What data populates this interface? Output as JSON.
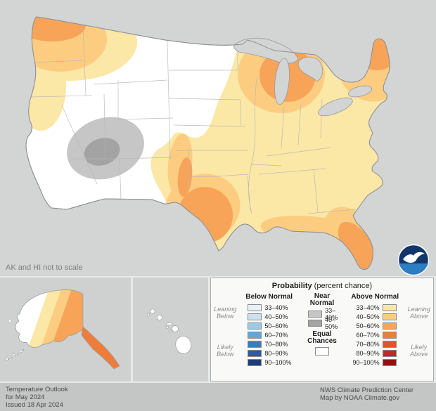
{
  "note": "AK and HI not to scale",
  "legend": {
    "title_bold": "Probability",
    "title_rest": " (percent chance)",
    "below": {
      "header": "Below Normal",
      "rows": [
        {
          "range": "33–40%",
          "color": "#e8f2fa"
        },
        {
          "range": "40–50%",
          "color": "#c9e1f1"
        },
        {
          "range": "50–60%",
          "color": "#9bcae4"
        },
        {
          "range": "60–70%",
          "color": "#66a6d4"
        },
        {
          "range": "70–80%",
          "color": "#3c7db9"
        },
        {
          "range": "80–90%",
          "color": "#2a5ba4"
        },
        {
          "range": "90–100%",
          "color": "#1c3e78"
        }
      ]
    },
    "near": {
      "header": "Near Normal",
      "rows": [
        {
          "range": "33–40%",
          "color": "#c6c6c6"
        },
        {
          "range": "40–50%",
          "color": "#a3a3a3"
        }
      ],
      "equal_label": "Equal Chances",
      "equal_color": "#ffffff"
    },
    "above": {
      "header": "Above Normal",
      "rows": [
        {
          "range": "33–40%",
          "color": "#fbe7a6"
        },
        {
          "range": "40–50%",
          "color": "#fccd80"
        },
        {
          "range": "50–60%",
          "color": "#f7a459"
        },
        {
          "range": "60–70%",
          "color": "#ef7d3a"
        },
        {
          "range": "70–80%",
          "color": "#e2532b"
        },
        {
          "range": "80–90%",
          "color": "#c02a20"
        },
        {
          "range": "90–100%",
          "color": "#8c1510"
        }
      ]
    },
    "side_labels": {
      "leaning_below": "Leaning Below",
      "likely_below": "Likely Below",
      "leaning_above": "Leaning Above",
      "likely_above": "Likely Above"
    }
  },
  "map_regions": [
    {
      "area": "Pacific Northwest (Washington)",
      "category": "above-normal",
      "range": "50–60%"
    },
    {
      "area": "Oregon / northern Idaho fringe",
      "category": "above-normal",
      "range": "33–50%"
    },
    {
      "area": "Four Corners (AZ/NM/CO/UT)",
      "category": "near-normal",
      "range": "33–50%"
    },
    {
      "area": "West and South Texas",
      "category": "above-normal",
      "range": "50–60%"
    },
    {
      "area": "Upper Midwest (Wisconsin, Michigan)",
      "category": "above-normal",
      "range": "50–60%"
    },
    {
      "area": "Northern New England (ME, NH, VT)",
      "category": "above-normal",
      "range": "50–60%"
    },
    {
      "area": "Florida peninsula and Gulf Coast",
      "category": "above-normal",
      "range": "40–60%"
    },
    {
      "area": "Broad eastern and southern US",
      "category": "above-normal",
      "range": "33–40%"
    },
    {
      "area": "California, Great Basin, northern Plains",
      "category": "equal-chances",
      "range": ""
    },
    {
      "area": "Eastern and southern Alaska",
      "category": "above-normal",
      "range": "33–70%"
    },
    {
      "area": "Western Alaska, Hawaii",
      "category": "equal-chances",
      "range": ""
    }
  ],
  "footer": {
    "left": [
      "Temperature Outlook",
      "for May 2024",
      "Issued 18 Apr 2024"
    ],
    "right": [
      "NWS Climate Prediction Center",
      "Map by NOAA Climate.gov"
    ]
  },
  "logo": {
    "name": "NOAA"
  }
}
